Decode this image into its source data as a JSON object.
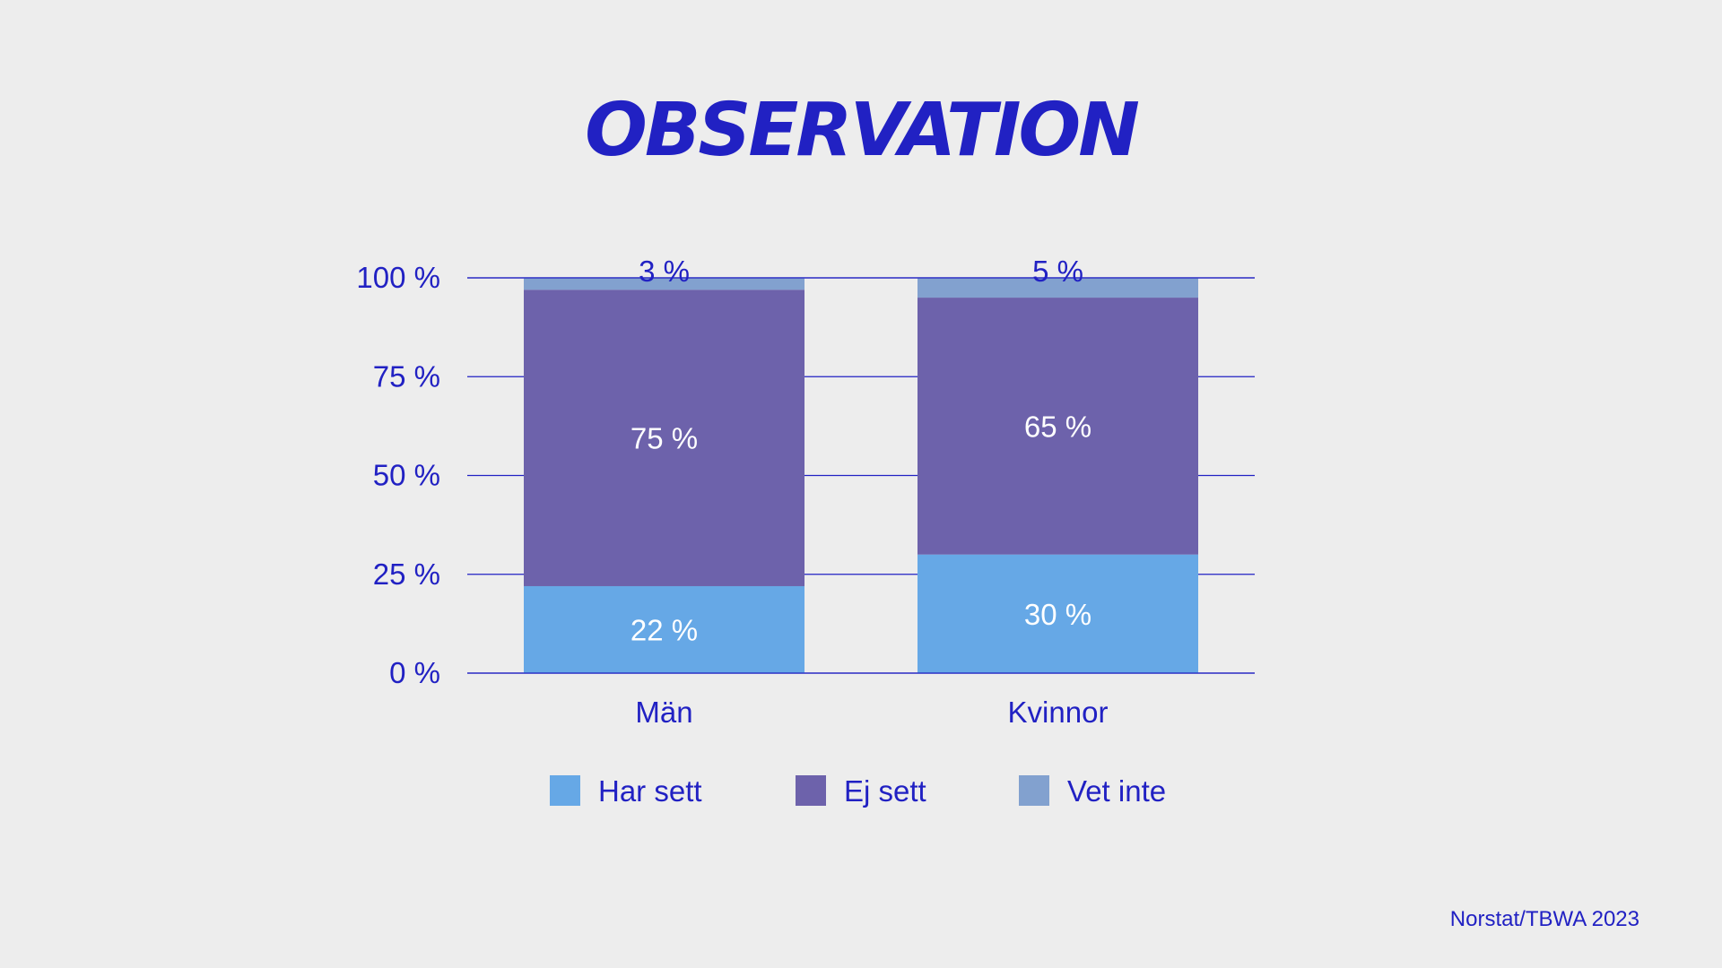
{
  "title": "OBSERVATION",
  "source": "Norstat/TBWA 2023",
  "colors": {
    "text": "#2121c3",
    "gridline": "#2121c3",
    "label_light": "#ffffff"
  },
  "chart_data": {
    "type": "bar",
    "stacked": true,
    "categories": [
      "Män",
      "Kvinnor"
    ],
    "series": [
      {
        "name": "Har sett",
        "values": [
          22,
          30
        ],
        "labels": [
          "22 %",
          "30 %"
        ],
        "color": "#66a8e6"
      },
      {
        "name": "Ej sett",
        "values": [
          75,
          65
        ],
        "labels": [
          "75 %",
          "65 %"
        ],
        "color": "#6d62ab"
      },
      {
        "name": "Vet inte",
        "values": [
          3,
          5
        ],
        "labels": [
          "3 %",
          "5 %"
        ],
        "color": "#82a1cf"
      }
    ],
    "yticks": [
      0,
      25,
      50,
      75,
      100
    ],
    "ytick_labels": [
      "0 %",
      "25 %",
      "50 %",
      "75 %",
      "100 %"
    ],
    "ylim": [
      0,
      100
    ],
    "grid": true,
    "legend": "bottom"
  }
}
